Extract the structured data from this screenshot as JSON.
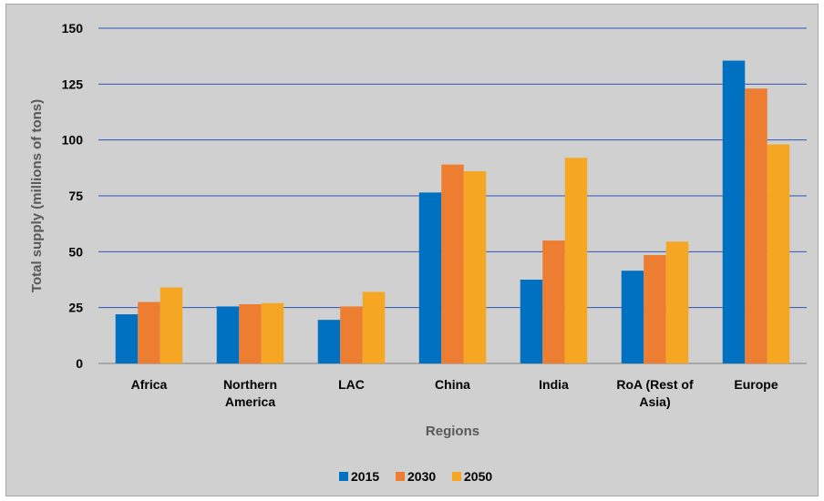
{
  "chart_data": {
    "type": "bar",
    "xlabel": "Regions",
    "ylabel": "Total supply (millions of tons)",
    "ylim": [
      0,
      150
    ],
    "yticks": [
      0,
      25,
      50,
      75,
      100,
      125,
      150
    ],
    "grid": true,
    "legend_position": "bottom",
    "categories": [
      [
        "Africa"
      ],
      [
        "Northern",
        "America"
      ],
      [
        "LAC"
      ],
      [
        "China"
      ],
      [
        "India"
      ],
      [
        "RoA (Rest of",
        "Asia)"
      ],
      [
        "Europe"
      ]
    ],
    "series": [
      {
        "name": "2015",
        "color": "#0070c0",
        "values": [
          22,
          25.5,
          19.5,
          76.5,
          37.5,
          41.5,
          135.5
        ]
      },
      {
        "name": "2030",
        "color": "#ed7d31",
        "values": [
          27.5,
          26.5,
          25.5,
          89,
          55,
          48.5,
          123
        ]
      },
      {
        "name": "2050",
        "color": "#f5a623",
        "values": [
          34,
          27,
          32,
          86,
          92,
          54.5,
          98
        ]
      }
    ],
    "gridline_color": "#2f55b5",
    "background_color": "#d0d0d0"
  }
}
